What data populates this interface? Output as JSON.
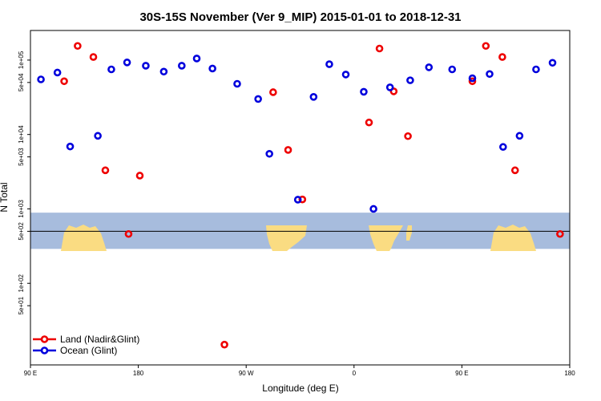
{
  "chart_data": {
    "type": "scatter",
    "title": "30S-15S November (Ver 9_MIP)   2015-01-01 to 2018-12-31",
    "xlabel": "Longitude (deg E)",
    "ylabel": "N Total",
    "xlim": [
      90,
      450
    ],
    "yscale": "log",
    "ylim": [
      8,
      250000
    ],
    "x_ticks": [
      {
        "value": 90,
        "label": "90 E"
      },
      {
        "value": 162,
        "label": "180"
      },
      {
        "value": 234,
        "label": "90 W"
      },
      {
        "value": 306,
        "label": "0"
      },
      {
        "value": 378,
        "label": "90 E"
      },
      {
        "value": 450,
        "label": "180"
      }
    ],
    "y_ticks": [
      {
        "value": 50,
        "label": "5e+01"
      },
      {
        "value": 100,
        "label": "1e+02"
      },
      {
        "value": 500,
        "label": "5e+02"
      },
      {
        "value": 1000,
        "label": "1e+03"
      },
      {
        "value": 5000,
        "label": "5e+03"
      },
      {
        "value": 10000,
        "label": "1e+04"
      },
      {
        "value": 50000,
        "label": "5e+04"
      },
      {
        "value": 100000,
        "label": "1e+05"
      }
    ],
    "reference_line": 500,
    "map_band": {
      "y_low": 290,
      "y_high": 890,
      "ocean_color": "#a7bcdd",
      "land_color": "#fadc82"
    },
    "legend_position": "bottom-left",
    "series": [
      {
        "name": "Land (Nadir&Glint)",
        "color": "#ee0000",
        "points": [
          {
            "x": 112.5,
            "y": 52000
          },
          {
            "x": 121.5,
            "y": 155000
          },
          {
            "x": 132,
            "y": 110000
          },
          {
            "x": 140,
            "y": 3300
          },
          {
            "x": 155.5,
            "y": 460
          },
          {
            "x": 163,
            "y": 2800
          },
          {
            "x": 219.5,
            "y": 15
          },
          {
            "x": 252,
            "y": 37000
          },
          {
            "x": 262,
            "y": 6200
          },
          {
            "x": 271.5,
            "y": 1340
          },
          {
            "x": 316,
            "y": 14500
          },
          {
            "x": 323,
            "y": 143000
          },
          {
            "x": 332.5,
            "y": 38000
          },
          {
            "x": 342,
            "y": 9500
          },
          {
            "x": 385,
            "y": 52000
          },
          {
            "x": 394,
            "y": 155000
          },
          {
            "x": 405,
            "y": 110000
          },
          {
            "x": 413.5,
            "y": 3300
          },
          {
            "x": 443.5,
            "y": 460
          }
        ]
      },
      {
        "name": "Ocean (Glint)",
        "color": "#0000dd",
        "points": [
          {
            "x": 97,
            "y": 55000
          },
          {
            "x": 108,
            "y": 68000
          },
          {
            "x": 116.5,
            "y": 6900
          },
          {
            "x": 135,
            "y": 9600
          },
          {
            "x": 144,
            "y": 75000
          },
          {
            "x": 154.5,
            "y": 93000
          },
          {
            "x": 167,
            "y": 84000
          },
          {
            "x": 179,
            "y": 70000
          },
          {
            "x": 191,
            "y": 84000
          },
          {
            "x": 201,
            "y": 105000
          },
          {
            "x": 211.5,
            "y": 77000
          },
          {
            "x": 228,
            "y": 48000
          },
          {
            "x": 242,
            "y": 30000
          },
          {
            "x": 249.5,
            "y": 5500
          },
          {
            "x": 268.5,
            "y": 1330
          },
          {
            "x": 279,
            "y": 32000
          },
          {
            "x": 289.5,
            "y": 88000
          },
          {
            "x": 300.5,
            "y": 64000
          },
          {
            "x": 312.5,
            "y": 37500
          },
          {
            "x": 319,
            "y": 1000
          },
          {
            "x": 330,
            "y": 43000
          },
          {
            "x": 343.5,
            "y": 53500
          },
          {
            "x": 356,
            "y": 80000
          },
          {
            "x": 371.5,
            "y": 75000
          },
          {
            "x": 385,
            "y": 57000
          },
          {
            "x": 396.5,
            "y": 65000
          },
          {
            "x": 405.5,
            "y": 6800
          },
          {
            "x": 416.5,
            "y": 9600
          },
          {
            "x": 427.5,
            "y": 75000
          },
          {
            "x": 438.5,
            "y": 92000
          }
        ]
      }
    ]
  }
}
